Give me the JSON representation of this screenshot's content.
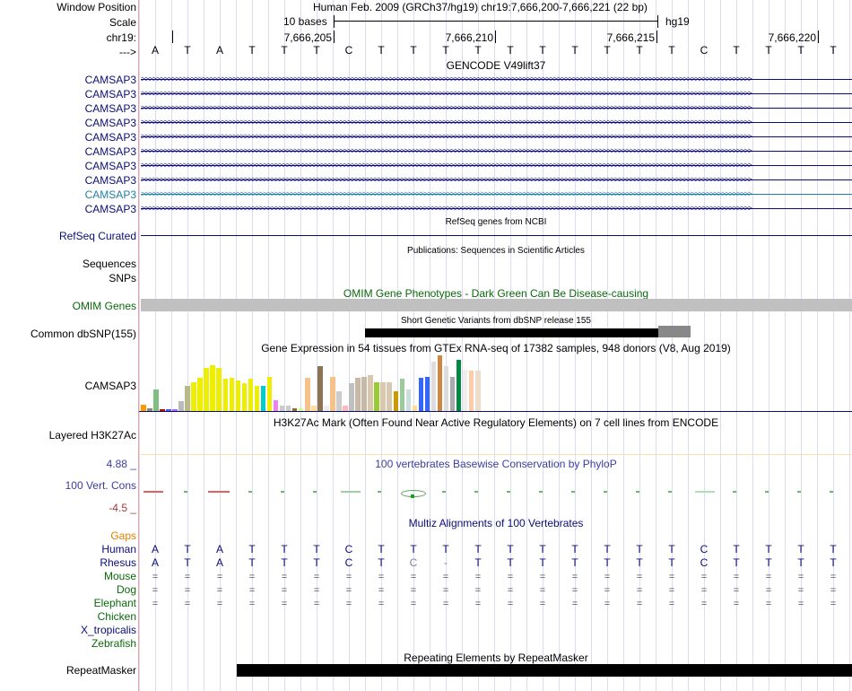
{
  "header": {
    "position_label": "Window Position",
    "position_value": "Human Feb. 2009 (GRCh37/hg19)   chr19:7,666,200-7,666,221 (22 bp)",
    "scale_label": "Scale",
    "scale_text": "10 bases",
    "scale_db": "hg19",
    "chrom_label": "chr19:",
    "strand_label": "--->",
    "ticks": [
      "7,666,205",
      "7,666,210",
      "7,666,215",
      "7,666,220"
    ]
  },
  "sequence": [
    "A",
    "T",
    "A",
    "T",
    "T",
    "T",
    "C",
    "T",
    "T",
    "T",
    "T",
    "T",
    "T",
    "T",
    "T",
    "T",
    "T",
    "C",
    "T",
    "T",
    "T",
    "T"
  ],
  "gencode": {
    "title": "GENCODE V49lift37",
    "transcripts": [
      "CAMSAP3",
      "CAMSAP3",
      "CAMSAP3",
      "CAMSAP3",
      "CAMSAP3",
      "CAMSAP3",
      "CAMSAP3",
      "CAMSAP3",
      "CAMSAP3",
      "CAMSAP3"
    ],
    "colors": [
      "#0c0c78",
      "#0c0c78",
      "#0c0c78",
      "#0c0c78",
      "#0c0c78",
      "#0c0c78",
      "#0c0c78",
      "#0c0c78",
      "#1e7fa8",
      "#0c0c78"
    ]
  },
  "refseq": {
    "title": "RefSeq genes from NCBI",
    "label": "RefSeq Curated"
  },
  "publications": {
    "title": "Publications: Sequences in Scientific Articles",
    "label_sequences": "Sequences",
    "label_snps": "SNPs"
  },
  "omim": {
    "title": "OMIM Gene Phenotypes - Dark Green Can Be Disease-causing",
    "label": "OMIM Genes"
  },
  "dbsnp": {
    "title": "Short Genetic Variants from dbSNP release 155",
    "label": "Common dbSNP(155)"
  },
  "gtex": {
    "title": "Gene Expression in 54 tissues from GTEx RNA-seq of 17382 samples, 948 donors (V8, Aug 2019)",
    "label": "CAMSAP3",
    "levels": [
      0.12,
      0.05,
      0.38,
      0.04,
      0.03,
      0.03,
      0.18,
      0.45,
      0.52,
      0.6,
      0.78,
      0.82,
      0.78,
      0.58,
      0.6,
      0.55,
      0.5,
      0.58,
      0.45,
      0.45,
      0.62,
      0.2,
      0.1,
      0.1,
      0.05,
      0.05,
      0.6,
      0.1,
      0.8,
      0.1,
      0.62,
      0.35,
      0.1,
      0.5,
      0.6,
      0.62,
      0.65,
      0.52,
      0.52,
      0.52,
      0.35,
      0.58,
      0.38,
      0.1,
      0.6,
      0.62,
      0.88,
      1.0,
      0.8,
      0.62,
      0.92,
      0.75,
      0.72,
      0.72
    ],
    "colors": [
      "#ff9900",
      "#888888",
      "#7fbf7f",
      "#aa1100",
      "#5555ff",
      "#aa66ff",
      "#bbbbbb",
      "#b8b88b",
      "#eeee00",
      "#eeee00",
      "#eeee00",
      "#eeee00",
      "#eeee00",
      "#eeee00",
      "#eeee00",
      "#eeee00",
      "#eeee00",
      "#eeee00",
      "#eeee00",
      "#00cccc",
      "#eeee00",
      "#ee82ee",
      "#cccccc",
      "#cccccc",
      "#996633",
      "#ccff99",
      "#f5c28b",
      "#ffdd99",
      "#8b7355",
      "#eeeeee",
      "#f5c28b",
      "#cccccc",
      "#ffb6c1",
      "#c0c0c0",
      "#c8b8a8",
      "#c8b8a8",
      "#d8c8b0",
      "#99cc33",
      "#d8c8b0",
      "#d8c8b0",
      "#cc9900",
      "#99cc99",
      "#ccdddd",
      "#ffdd99",
      "#3366ff",
      "#3366ff",
      "#dddddd",
      "#cc8844",
      "#dddddd",
      "#aaaaaa",
      "#008844",
      "#eeeeee",
      "#ffccaa",
      "#eeddcc"
    ]
  },
  "h3k27ac": {
    "title": "H3K27Ac Mark (Often Found Near Active Regulatory Elements) on 7 cell lines from ENCODE",
    "label": "Layered H3K27Ac"
  },
  "phylop": {
    "title": "100 vertebrates Basewise Conservation by PhyloP",
    "max": "4.88 _",
    "label": "100 Vert. Cons",
    "min": "-4.5 _"
  },
  "multiz": {
    "title": "Multiz Alignments of 100 Vertebrates",
    "species": [
      {
        "name": "Gaps",
        "color": "#e08000"
      },
      {
        "name": "Human",
        "color": "#0c0c78"
      },
      {
        "name": "Rhesus",
        "color": "#0c0c78"
      },
      {
        "name": "Mouse",
        "color": "#0a6a0a"
      },
      {
        "name": "Dog",
        "color": "#0a6a0a"
      },
      {
        "name": "Elephant",
        "color": "#0a6a0a"
      },
      {
        "name": "Chicken",
        "color": "#0a6a0a"
      },
      {
        "name": "X_tropicalis",
        "color": "#0c0c78"
      },
      {
        "name": "Zebrafish",
        "color": "#0a6a0a"
      }
    ],
    "human": [
      "A",
      "T",
      "A",
      "T",
      "T",
      "T",
      "C",
      "T",
      "T",
      "T",
      "T",
      "T",
      "T",
      "T",
      "T",
      "T",
      "T",
      "C",
      "T",
      "T",
      "T",
      "T"
    ],
    "rhesus": [
      "A",
      "T",
      "A",
      "T",
      "T",
      "T",
      "C",
      "T",
      "C",
      "-",
      "T",
      "T",
      "T",
      "T",
      "T",
      "T",
      "T",
      "C",
      "T",
      "T",
      "T",
      "T"
    ],
    "eq": "="
  },
  "repeatmasker": {
    "title": "Repeating Elements by RepeatMasker",
    "label": "RepeatMasker"
  }
}
